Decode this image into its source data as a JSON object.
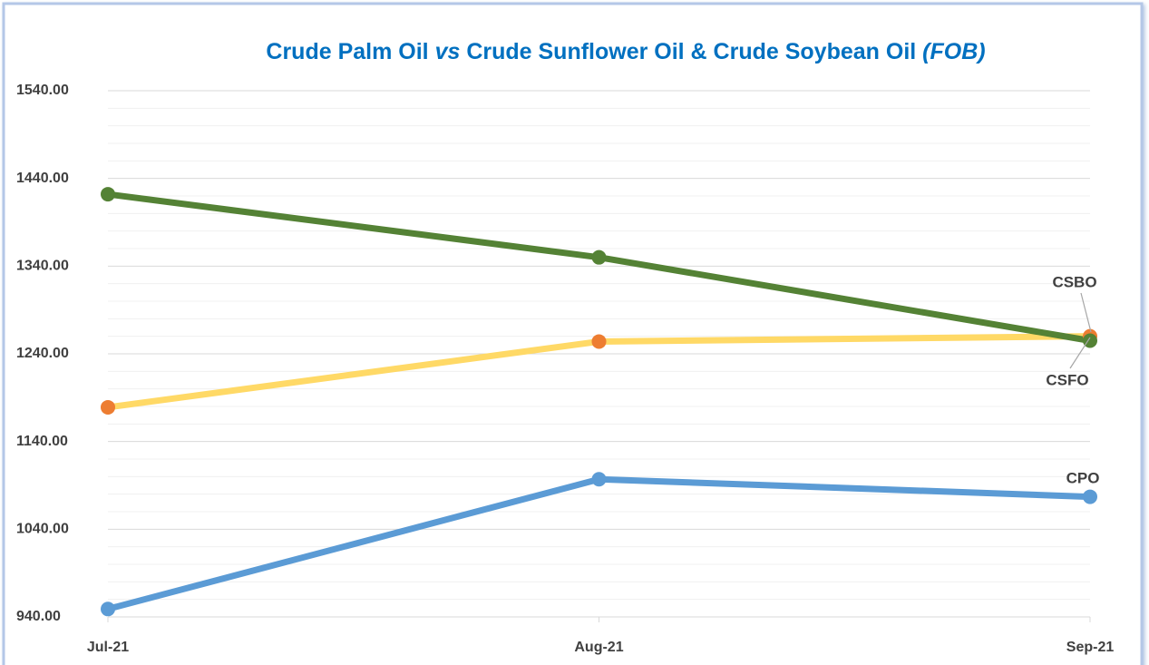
{
  "chart_data": {
    "type": "line",
    "title": [
      {
        "text": "Crude Palm Oil ",
        "italic": false
      },
      {
        "text": "vs",
        "italic": true
      },
      {
        "text": " Crude Sunflower Oil & Crude Soybean Oil ",
        "italic": false
      },
      {
        "text": "(FOB)",
        "italic": true
      }
    ],
    "title_color": "#0070c0",
    "categories": [
      "Jul-21",
      "Aug-21",
      "Sep-21"
    ],
    "series": [
      {
        "name": "CPO",
        "color": "#5b9bd5",
        "marker_color": "#5b9bd5",
        "values": [
          949,
          1097,
          1077
        ]
      },
      {
        "name": "CSBO",
        "color": "#ffd966",
        "marker_color": "#ed7d31",
        "values": [
          1179,
          1254,
          1260
        ]
      },
      {
        "name": "CSFO",
        "color": "#548235",
        "marker_color": "#548235",
        "values": [
          1422,
          1350,
          1255
        ]
      }
    ],
    "ylim": [
      940,
      1540
    ],
    "yticks": [
      {
        "value": 940,
        "label": "940.00"
      },
      {
        "value": 1040,
        "label": "1040.00"
      },
      {
        "value": 1140,
        "label": "1140.00"
      },
      {
        "value": 1240,
        "label": "1240.00"
      },
      {
        "value": 1340,
        "label": "1340.00"
      },
      {
        "value": 1440,
        "label": "1440.00"
      },
      {
        "value": 1540,
        "label": "1540.00"
      }
    ],
    "yminorticks": [
      960,
      980,
      1000,
      1020,
      1060,
      1080,
      1100,
      1120,
      1160,
      1180,
      1200,
      1220,
      1260,
      1280,
      1300,
      1320,
      1360,
      1380,
      1400,
      1420,
      1460,
      1480,
      1500,
      1520
    ],
    "grid": true
  }
}
